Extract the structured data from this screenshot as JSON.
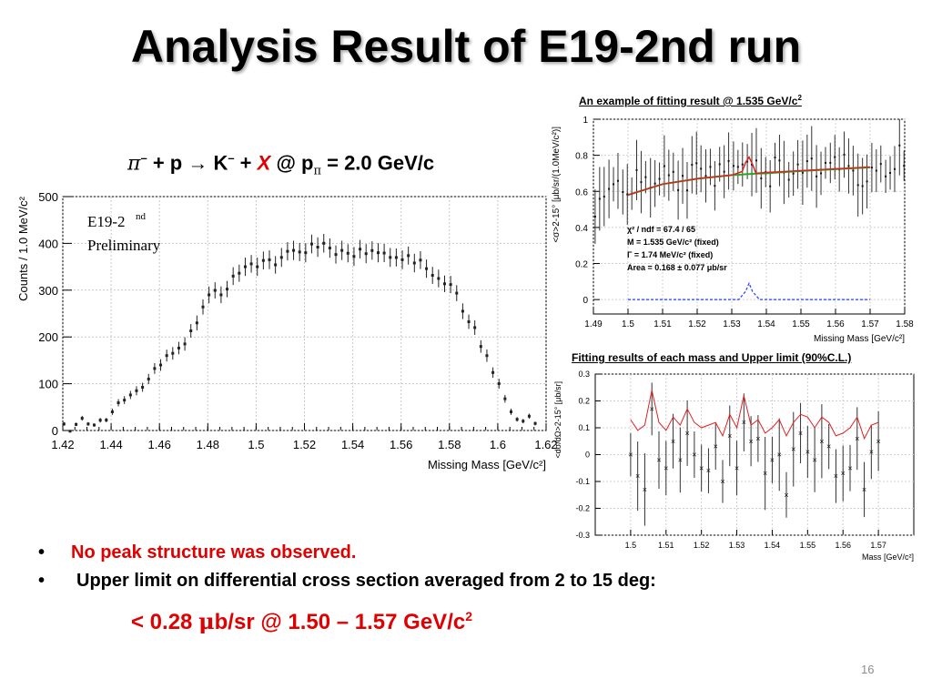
{
  "slide": {
    "title": "Analysis Result of E19-2nd run",
    "page_number": "16"
  },
  "reaction": {
    "pi": "π",
    "minus": "–",
    "plus_p_arrow_k": " + p → K",
    "plus": " + ",
    "x": "X",
    "at_p": "  @ p",
    "sub_pi": "π",
    "momentum": " = 2.0 GeV/c"
  },
  "captions": {
    "top_right_main": "An example of fitting result @ 1.535 GeV/c",
    "top_right_sup": "2",
    "bottom_right": "Fitting results of each mass and Upper limit (90%C.L.)"
  },
  "bullets": {
    "b1": "No peak structure was observed.",
    "b2": "Upper limit on differential cross section averaged from 2 to 15 deg:",
    "result_pre": "< 0.28 ",
    "result_mu": "μ",
    "result_post": "b/sr @ 1.50 – 1.57 GeV/c",
    "result_sup": "2"
  },
  "chart_data": [
    {
      "id": "missing-mass-spectrum",
      "type": "scatter",
      "xlabel": "Missing Mass [GeV/c²]",
      "ylabel": "Counts / 1.0 MeV/c²",
      "xlim": [
        1.42,
        1.62
      ],
      "ylim": [
        0,
        500
      ],
      "x_ticks": [
        "1.42",
        "1.44",
        "1.46",
        "1.48",
        "1.5",
        "1.52",
        "1.54",
        "1.56",
        "1.58",
        "1.6",
        "1.62"
      ],
      "y_ticks": [
        "0",
        "100",
        "200",
        "300",
        "400",
        "500"
      ],
      "grid": true,
      "annotation_line1": "E19-2",
      "annotation_sup": "nd",
      "annotation_line2": "Preliminary",
      "points": [
        [
          1.4205,
          14
        ],
        [
          1.4255,
          13
        ],
        [
          1.4305,
          14
        ],
        [
          1.4355,
          22
        ],
        [
          1.4405,
          40
        ],
        [
          1.4455,
          65
        ],
        [
          1.4505,
          85
        ],
        [
          1.4555,
          110
        ],
        [
          1.4605,
          140
        ],
        [
          1.4655,
          165
        ],
        [
          1.4705,
          185
        ],
        [
          1.4755,
          230
        ],
        [
          1.4805,
          290
        ],
        [
          1.4855,
          290
        ],
        [
          1.4905,
          330
        ],
        [
          1.4955,
          350
        ],
        [
          1.5005,
          350
        ],
        [
          1.5055,
          365
        ],
        [
          1.5105,
          370
        ],
        [
          1.5155,
          385
        ],
        [
          1.5205,
          380
        ],
        [
          1.5255,
          392
        ],
        [
          1.5305,
          390
        ],
        [
          1.5355,
          385
        ],
        [
          1.5405,
          372
        ],
        [
          1.5455,
          378
        ],
        [
          1.5505,
          380
        ],
        [
          1.5555,
          370
        ],
        [
          1.5605,
          365
        ],
        [
          1.5655,
          358
        ],
        [
          1.5705,
          346
        ],
        [
          1.5755,
          325
        ],
        [
          1.5805,
          312
        ],
        [
          1.5855,
          255
        ],
        [
          1.5905,
          220
        ],
        [
          1.5955,
          160
        ],
        [
          1.6005,
          100
        ],
        [
          1.6055,
          40
        ],
        [
          1.6105,
          20
        ],
        [
          1.6155,
          15
        ]
      ]
    },
    {
      "id": "fit-example",
      "type": "line",
      "xlabel": "Missing Mass [GeV/c²]",
      "ylabel": "<σ>2-15° [μb/sr/(1.0MeV/c²)]",
      "xlim": [
        1.49,
        1.58
      ],
      "ylim": [
        -0.08,
        1.0
      ],
      "x_ticks": [
        "1.49",
        "1.5",
        "1.51",
        "1.52",
        "1.53",
        "1.54",
        "1.55",
        "1.56",
        "1.57",
        "1.58"
      ],
      "y_ticks": [
        "0",
        "0.2",
        "0.4",
        "0.6",
        "0.8",
        "1"
      ],
      "grid": true,
      "fit_stats": [
        "χ² / ndf = 67.4 / 65",
        "M = 1.535 GeV/c² (fixed)",
        "Γ = 1.74 MeV/c² (fixed)",
        "Area = 0.168 ± 0.077 μb/sr"
      ],
      "data_points": [
        [
          1.4905,
          0.52
        ],
        [
          1.4945,
          0.6
        ],
        [
          1.4985,
          0.56
        ],
        [
          1.5025,
          0.66
        ],
        [
          1.5065,
          0.68
        ],
        [
          1.5105,
          0.7
        ],
        [
          1.5145,
          0.64
        ],
        [
          1.5185,
          0.76
        ],
        [
          1.5225,
          0.68
        ],
        [
          1.5265,
          0.73
        ],
        [
          1.5305,
          0.71
        ],
        [
          1.5345,
          0.77
        ],
        [
          1.5385,
          0.66
        ],
        [
          1.5425,
          0.74
        ],
        [
          1.5465,
          0.69
        ],
        [
          1.5505,
          0.76
        ],
        [
          1.5545,
          0.7
        ],
        [
          1.5585,
          0.73
        ],
        [
          1.5625,
          0.75
        ],
        [
          1.5665,
          0.68
        ],
        [
          1.5705,
          0.77
        ],
        [
          1.5745,
          0.72
        ],
        [
          1.5785,
          0.8
        ]
      ],
      "fit_curve_x": [
        1.5,
        1.51,
        1.52,
        1.53,
        1.533,
        1.534,
        1.535,
        1.536,
        1.537,
        1.54,
        1.55,
        1.56,
        1.57
      ],
      "fit_curve_y": [
        0.58,
        0.64,
        0.67,
        0.69,
        0.71,
        0.76,
        0.79,
        0.75,
        0.7,
        0.705,
        0.715,
        0.725,
        0.735
      ],
      "background_curve_y": [
        0.58,
        0.64,
        0.67,
        0.69,
        0.693,
        0.695,
        0.696,
        0.697,
        0.698,
        0.7,
        0.713,
        0.723,
        0.733
      ],
      "peak_curve_x": [
        1.5,
        1.532,
        1.534,
        1.535,
        1.536,
        1.538,
        1.57
      ],
      "peak_curve_y": [
        0,
        0,
        0.045,
        0.09,
        0.045,
        0,
        0
      ]
    },
    {
      "id": "upper-limit-scan",
      "type": "scatter",
      "xlabel": "Mass [GeV/c²]",
      "ylabel": "<dσ/dΩ>2-15° [μb/sr]",
      "xlim": [
        1.49,
        1.58
      ],
      "ylim": [
        -0.3,
        0.3
      ],
      "x_ticks": [
        "1.5",
        "1.51",
        "1.52",
        "1.53",
        "1.54",
        "1.55",
        "1.56",
        "1.57"
      ],
      "y_ticks": [
        "-0.3",
        "-0.2",
        "-0.1",
        "0",
        "0.1",
        "0.2",
        "0.3"
      ],
      "grid": true,
      "x": [
        1.5,
        1.502,
        1.504,
        1.506,
        1.508,
        1.51,
        1.512,
        1.514,
        1.516,
        1.518,
        1.52,
        1.522,
        1.524,
        1.526,
        1.528,
        1.53,
        1.532,
        1.534,
        1.536,
        1.538,
        1.54,
        1.542,
        1.544,
        1.546,
        1.548,
        1.55,
        1.552,
        1.554,
        1.556,
        1.558,
        1.56,
        1.562,
        1.564,
        1.566,
        1.568,
        1.57
      ],
      "values": [
        0.0,
        -0.08,
        -0.13,
        0.17,
        -0.02,
        -0.05,
        0.05,
        -0.02,
        0.08,
        0.0,
        -0.05,
        -0.06,
        0.03,
        -0.1,
        0.07,
        -0.05,
        0.12,
        0.05,
        0.06,
        -0.07,
        -0.02,
        0.0,
        -0.15,
        0.02,
        0.08,
        0.01,
        -0.02,
        0.05,
        0.03,
        -0.08,
        -0.07,
        -0.05,
        0.06,
        -0.13,
        0.01,
        0.05
      ],
      "upper_limit": [
        0.13,
        0.09,
        0.11,
        0.24,
        0.12,
        0.09,
        0.14,
        0.11,
        0.17,
        0.12,
        0.1,
        0.11,
        0.12,
        0.07,
        0.15,
        0.1,
        0.22,
        0.11,
        0.13,
        0.08,
        0.1,
        0.13,
        0.07,
        0.12,
        0.15,
        0.14,
        0.1,
        0.14,
        0.12,
        0.07,
        0.08,
        0.1,
        0.14,
        0.06,
        0.11,
        0.12
      ]
    }
  ]
}
